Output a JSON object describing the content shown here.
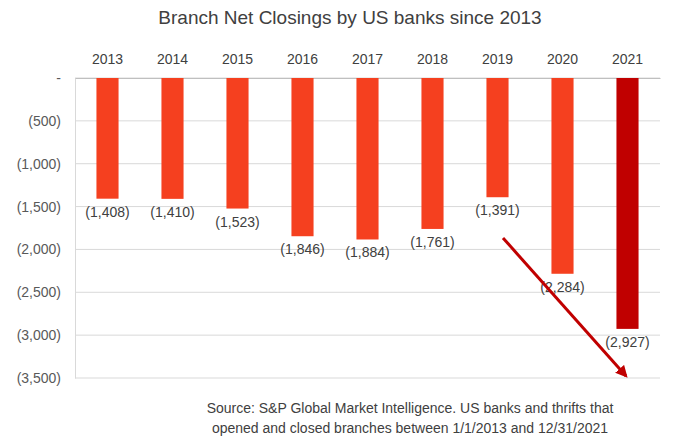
{
  "chart_data": {
    "type": "bar",
    "title": "Branch Net Closings by US banks since 2013",
    "categories": [
      "2013",
      "2014",
      "2015",
      "2016",
      "2017",
      "2018",
      "2019",
      "2020",
      "2021"
    ],
    "values": [
      -1408,
      -1410,
      -1523,
      -1846,
      -1884,
      -1761,
      -1391,
      -2284,
      -2927
    ],
    "value_labels": [
      "(1,408)",
      "(1,410)",
      "(1,523)",
      "(1,846)",
      "(1,884)",
      "(1,761)",
      "(1,391)",
      "(2,284)",
      "(2,927)"
    ],
    "colors": [
      "#f5401f",
      "#f5401f",
      "#f5401f",
      "#f5401f",
      "#f5401f",
      "#f5401f",
      "#f5401f",
      "#f5401f",
      "#c00000"
    ],
    "ylim": [
      -3500,
      0
    ],
    "yticks": [
      {
        "value": 0,
        "label": "-"
      },
      {
        "value": -500,
        "label": "(500)"
      },
      {
        "value": -1000,
        "label": "(1,000)"
      },
      {
        "value": -1500,
        "label": "(1,500)"
      },
      {
        "value": -2000,
        "label": "(2,000)"
      },
      {
        "value": -2500,
        "label": "(2,500)"
      },
      {
        "value": -3000,
        "label": "(3,000)"
      },
      {
        "value": -3500,
        "label": "(3,500)"
      }
    ],
    "grid": true,
    "data_labels": true,
    "source": [
      "Source: S&P Global Market Intelligence. US banks and thrifts that",
      "opened and closed branches between 1/1/2013 and 12/31/2021"
    ]
  }
}
